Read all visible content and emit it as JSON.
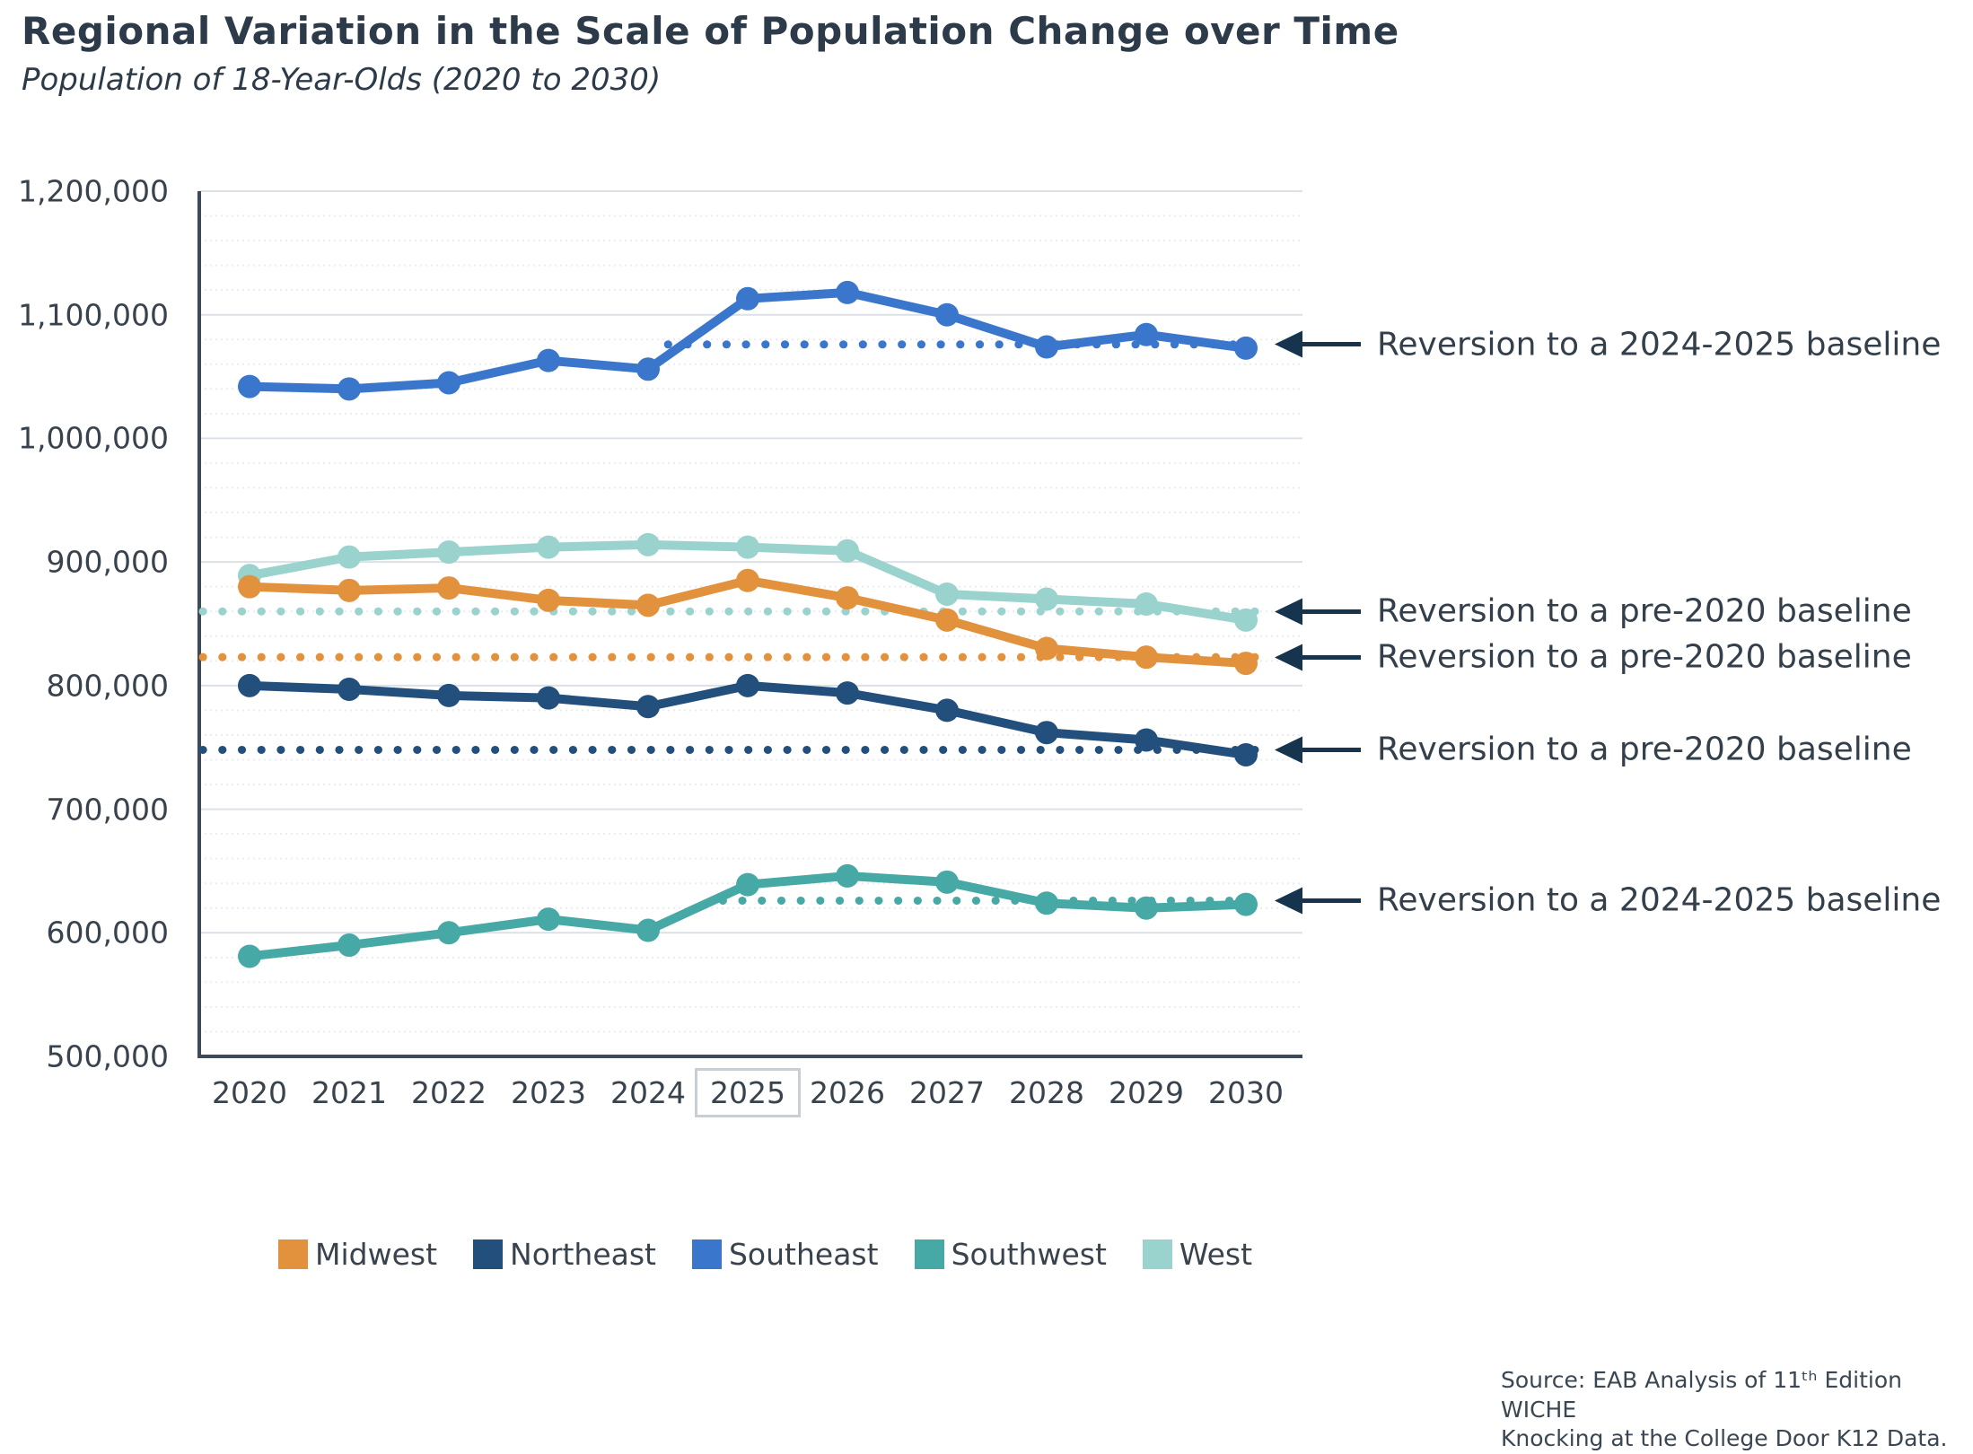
{
  "chart_data": {
    "type": "line",
    "title": "Regional Variation in the Scale of Population Change over Time",
    "subtitle": "Population of 18-Year-Olds (2020 to 2030)",
    "xlabel": "",
    "ylabel": "",
    "ylim": [
      500000,
      1200000
    ],
    "y_major_step": 100000,
    "y_minor_step": 20000,
    "grid": true,
    "x_labels": [
      "2020",
      "2021",
      "2022",
      "2023",
      "2024",
      "2025",
      "2026",
      "2027",
      "2028",
      "2029",
      "2030"
    ],
    "highlighted_year": "2025",
    "x_years": [
      2020,
      2021,
      2022,
      2023,
      2024,
      2025,
      2026,
      2027,
      2028,
      2029,
      2030
    ],
    "y_ticks": [
      {
        "label": "1,200,000",
        "value": 1200000
      },
      {
        "label": "1,100,000",
        "value": 1100000
      },
      {
        "label": "1,000,000",
        "value": 1000000
      },
      {
        "label": "900,000",
        "value": 900000
      },
      {
        "label": "800,000",
        "value": 800000
      },
      {
        "label": "700,000",
        "value": 700000
      },
      {
        "label": "600,000",
        "value": 600000
      },
      {
        "label": "500,000",
        "value": 500000
      }
    ],
    "series": [
      {
        "name": "Midwest",
        "color": "#E2923D",
        "values": [
          880000,
          877000,
          879000,
          869000,
          865000,
          885000,
          871000,
          853000,
          830000,
          823000,
          818000
        ]
      },
      {
        "name": "Northeast",
        "color": "#234F7D",
        "values": [
          800000,
          797000,
          792000,
          790000,
          783000,
          800000,
          794000,
          780000,
          762000,
          756000,
          744000
        ]
      },
      {
        "name": "Southeast",
        "color": "#3A77CC",
        "values": [
          1042000,
          1040000,
          1045000,
          1063000,
          1056000,
          1113000,
          1118000,
          1100000,
          1074000,
          1084000,
          1073000
        ]
      },
      {
        "name": "Southwest",
        "color": "#47A9A6",
        "values": [
          581000,
          590000,
          600000,
          611000,
          602000,
          639000,
          646000,
          641000,
          624000,
          620000,
          623000
        ]
      },
      {
        "name": "West",
        "color": "#9AD2CD",
        "values": [
          889000,
          904000,
          908000,
          912000,
          914000,
          912000,
          909000,
          874000,
          870000,
          866000,
          853000
        ]
      }
    ],
    "baselines": [
      {
        "series": "Southeast",
        "value": 1076000,
        "from_year": 2024.2,
        "label": "Reversion to a 2024-2025 baseline"
      },
      {
        "series": "West",
        "value": 860000,
        "from_year": null,
        "label": "Reversion to a pre-2020 baseline"
      },
      {
        "series": "Midwest",
        "value": 823000,
        "from_year": null,
        "label": "Reversion to a pre-2020 baseline"
      },
      {
        "series": "Northeast",
        "value": 748000,
        "from_year": null,
        "label": "Reversion to a pre-2020 baseline"
      },
      {
        "series": "Southwest",
        "value": 626000,
        "from_year": 2024.75,
        "label": "Reversion to a 2024-2025 baseline"
      }
    ],
    "legend_position": "bottom",
    "arrow_color": "#16344E",
    "highlight_box_border": "#c9ced3"
  },
  "source": {
    "line1": "Source: EAB Analysis of 11ᵗʰ Edition WICHE",
    "line2": "Knocking at the College Door K12 Data."
  }
}
